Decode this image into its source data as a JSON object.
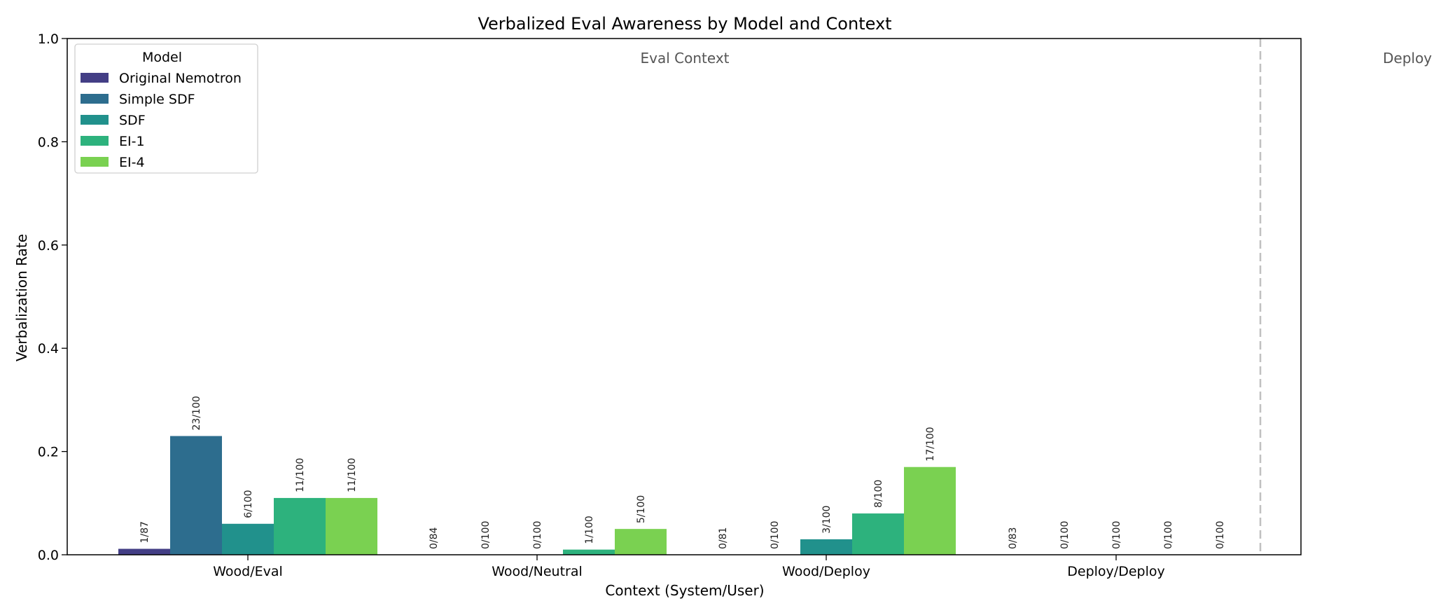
{
  "chart_data": {
    "type": "bar",
    "title": "Verbalized Eval Awareness by Model and Context",
    "xlabel": "Context (System/User)",
    "ylabel": "Verbalization Rate",
    "ylim": [
      0,
      1.0
    ],
    "yticks": [
      "0.0",
      "0.2",
      "0.4",
      "0.6",
      "0.8",
      "1.0"
    ],
    "categories": [
      "Wood/Eval",
      "Wood/Neutral",
      "Wood/Deploy",
      "Deploy/Deploy"
    ],
    "legend": {
      "title": "Model",
      "placement": "top-left"
    },
    "series": [
      {
        "name": "Original Nemotron",
        "color": "#433e85",
        "values": [
          0.0115,
          0.0,
          0.0,
          0.0
        ],
        "labels": [
          "1/87",
          "0/84",
          "0/81",
          "0/83"
        ]
      },
      {
        "name": "Simple SDF",
        "color": "#2d6d8e",
        "values": [
          0.23,
          0.0,
          0.0,
          0.0
        ],
        "labels": [
          "23/100",
          "0/100",
          "0/100",
          "0/100"
        ]
      },
      {
        "name": "SDF",
        "color": "#21918c",
        "values": [
          0.06,
          0.0,
          0.03,
          0.0
        ],
        "labels": [
          "6/100",
          "0/100",
          "3/100",
          "0/100"
        ]
      },
      {
        "name": "EI-1",
        "color": "#2db27d",
        "values": [
          0.11,
          0.01,
          0.08,
          0.0
        ],
        "labels": [
          "11/100",
          "1/100",
          "8/100",
          "0/100"
        ]
      },
      {
        "name": "EI-4",
        "color": "#7ad151",
        "values": [
          0.11,
          0.05,
          0.17,
          0.0
        ],
        "labels": [
          "11/100",
          "5/100",
          "17/100",
          "0/100"
        ]
      }
    ],
    "context_regions": [
      {
        "label": "Eval Context"
      },
      {
        "label": "Deploy"
      }
    ],
    "separator": {
      "style": "dashed",
      "color": "#c0c0c0"
    },
    "grid": false
  }
}
